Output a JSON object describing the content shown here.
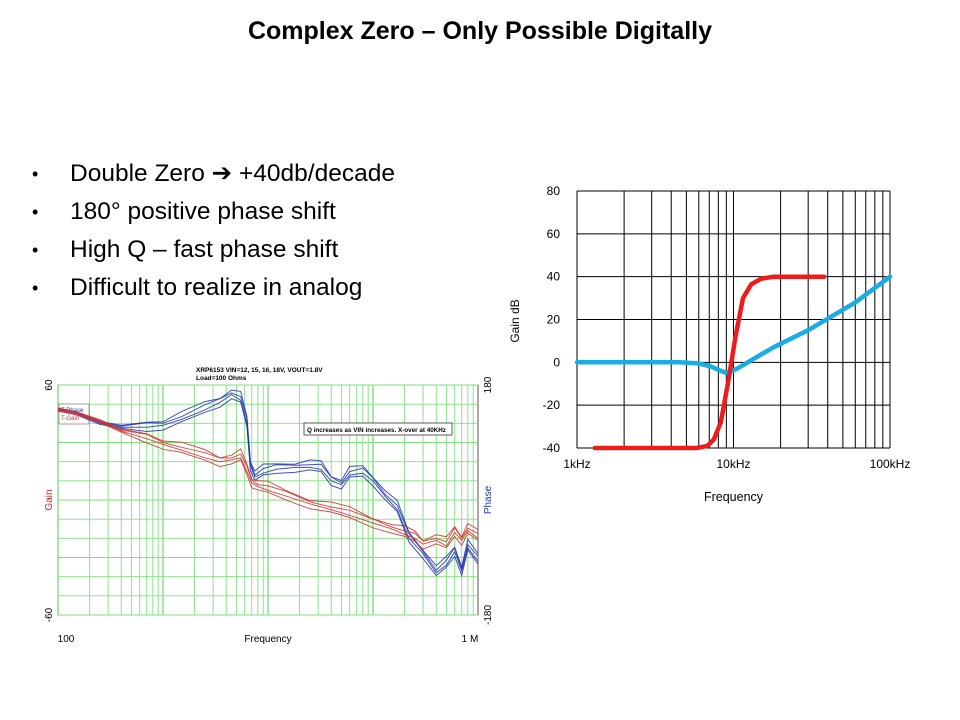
{
  "slide": {
    "title": "Complex Zero – Only Possible Digitally",
    "bullets": [
      "Double Zero ➔ +40db/decade",
      "180° positive phase shift",
      "High Q – fast phase shift",
      "Difficult to realize in analog"
    ],
    "bullet_marker": "•"
  },
  "chart_data": [
    {
      "type": "line",
      "title": "",
      "xlabel": "Frequency",
      "ylabel": "Gain dB",
      "x_scale": "log",
      "xlim": [
        1000,
        100000
      ],
      "ylim": [
        -40,
        80
      ],
      "x_ticks": [
        {
          "value": 1000,
          "label": "1kHz"
        },
        {
          "value": 10000,
          "label": "10kHz"
        },
        {
          "value": 100000,
          "label": "100kHz"
        }
      ],
      "y_ticks": [
        -40,
        -20,
        0,
        20,
        40,
        60,
        80
      ],
      "grid": true,
      "series": [
        {
          "color": "#1aace4",
          "points": [
            [
              1000,
              0
            ],
            [
              4500,
              0
            ],
            [
              6000,
              -0.5
            ],
            [
              7200,
              -2
            ],
            [
              8000,
              -3.5
            ],
            [
              9000,
              -5
            ],
            [
              10500,
              -3
            ],
            [
              13000,
              1
            ],
            [
              18000,
              7
            ],
            [
              30000,
              15
            ],
            [
              60000,
              28
            ],
            [
              100000,
              40
            ]
          ]
        },
        {
          "color": "#ee1c1c",
          "points": [
            [
              1300,
              -40
            ],
            [
              5800,
              -40
            ],
            [
              6800,
              -39
            ],
            [
              7500,
              -36
            ],
            [
              8300,
              -28
            ],
            [
              9300,
              -8
            ],
            [
              10300,
              12
            ],
            [
              11500,
              30
            ],
            [
              13000,
              36.5
            ],
            [
              15000,
              39
            ],
            [
              18000,
              40
            ],
            [
              38000,
              40
            ]
          ]
        }
      ]
    },
    {
      "type": "line",
      "title": "",
      "subtitle_lines": [
        "XRP6153 VIN=12, 15, 16, 18V, VOUT=1.8V",
        "Load=100 Ohms"
      ],
      "annotation": "Q increases as VIN increases.  X-over at 40KHz",
      "xlabel": "Frequency",
      "ylabel_left": "Gain",
      "ylabel_right": "Phase",
      "x_scale": "log",
      "xlim": [
        100,
        1000000
      ],
      "ylim_left": [
        -60,
        60
      ],
      "ylim_right": [
        -180,
        180
      ],
      "x_tick_labels": [
        {
          "value": 100,
          "label": "100"
        },
        {
          "value": 1000000,
          "label": "1 M"
        }
      ],
      "left_tick_labels": [
        {
          "value": 60,
          "label": "60"
        },
        {
          "value": -60,
          "label": "-60"
        }
      ],
      "right_tick_labels": [
        {
          "value": 180,
          "label": "180"
        },
        {
          "value": -180,
          "label": "-180"
        }
      ],
      "legend": [
        "T-Phase",
        "T-Gain"
      ],
      "grid": true,
      "series": [
        {
          "name": "T-Phase",
          "color": "#2233aa",
          "points_left_units": [
            [
              100,
              47
            ],
            [
              150,
              45
            ],
            [
              250,
              40
            ],
            [
              400,
              38
            ],
            [
              700,
              38
            ],
            [
              1000,
              39
            ],
            [
              1500,
              42
            ],
            [
              2500,
              47
            ],
            [
              3500,
              51
            ],
            [
              4500,
              55
            ],
            [
              5500,
              52
            ],
            [
              6300,
              40
            ],
            [
              6800,
              18
            ],
            [
              7500,
              12
            ],
            [
              9000,
              14
            ],
            [
              12000,
              16
            ],
            [
              18000,
              17
            ],
            [
              25000,
              17
            ],
            [
              32000,
              16
            ],
            [
              40000,
              10
            ],
            [
              50000,
              8
            ],
            [
              60000,
              13
            ],
            [
              80000,
              14
            ],
            [
              100000,
              10
            ],
            [
              130000,
              2
            ],
            [
              170000,
              -5
            ],
            [
              220000,
              -20
            ],
            [
              300000,
              -28
            ],
            [
              400000,
              -38
            ],
            [
              500000,
              -34
            ],
            [
              600000,
              -27
            ],
            [
              700000,
              -37
            ],
            [
              800000,
              -25
            ],
            [
              1000000,
              -32
            ]
          ]
        },
        {
          "name": "T-Gain",
          "color": "#cc3333",
          "points_left_units": [
            [
              100,
              47
            ],
            [
              150,
              45
            ],
            [
              250,
              41
            ],
            [
              400,
              36
            ],
            [
              700,
              32
            ],
            [
              1000,
              29
            ],
            [
              1500,
              26
            ],
            [
              2500,
              22
            ],
            [
              3500,
              20
            ],
            [
              4500,
              21
            ],
            [
              5500,
              22
            ],
            [
              6300,
              15
            ],
            [
              7000,
              9
            ],
            [
              8000,
              7
            ],
            [
              10000,
              5
            ],
            [
              15000,
              2
            ],
            [
              25000,
              -2
            ],
            [
              40000,
              -5
            ],
            [
              60000,
              -8
            ],
            [
              100000,
              -12
            ],
            [
              150000,
              -15
            ],
            [
              200000,
              -18
            ],
            [
              250000,
              -20
            ],
            [
              300000,
              -23
            ],
            [
              400000,
              -21
            ],
            [
              500000,
              -24
            ],
            [
              600000,
              -17
            ],
            [
              700000,
              -21
            ],
            [
              800000,
              -16
            ],
            [
              1000000,
              -20
            ]
          ]
        }
      ]
    }
  ]
}
